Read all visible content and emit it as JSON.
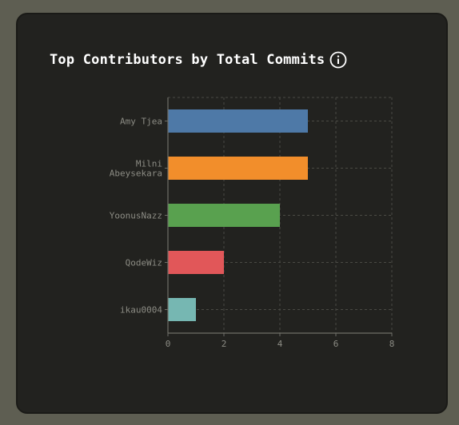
{
  "card": {
    "title": "Top Contributors by Total Commits",
    "info_icon": "info-circle-icon"
  },
  "colors": {
    "background": "#5e5e52",
    "card": "#22221f",
    "grid": "#4a4a44",
    "axis": "#6f6f68",
    "text": "#8c8c84",
    "title": "#ffffff"
  },
  "chart_data": {
    "type": "bar",
    "orientation": "horizontal",
    "categories": [
      "Amy Tjea",
      "Milni Abeysekara",
      "YoonusNazz",
      "QodeWiz",
      "ikau0004"
    ],
    "category_lines": [
      [
        "Amy Tjea"
      ],
      [
        "Milni",
        "Abeysekara"
      ],
      [
        "YoonusNazz"
      ],
      [
        "QodeWiz"
      ],
      [
        "ikau0004"
      ]
    ],
    "values": [
      5,
      5,
      4,
      2,
      1
    ],
    "bar_colors": [
      "#4e79a7",
      "#f28e2b",
      "#59a14f",
      "#e15759",
      "#76b7b2"
    ],
    "xlim": [
      0,
      8
    ],
    "xticks": [
      0,
      2,
      4,
      6,
      8
    ],
    "xlabel": "",
    "ylabel": "",
    "grid": true,
    "legend": "none"
  }
}
